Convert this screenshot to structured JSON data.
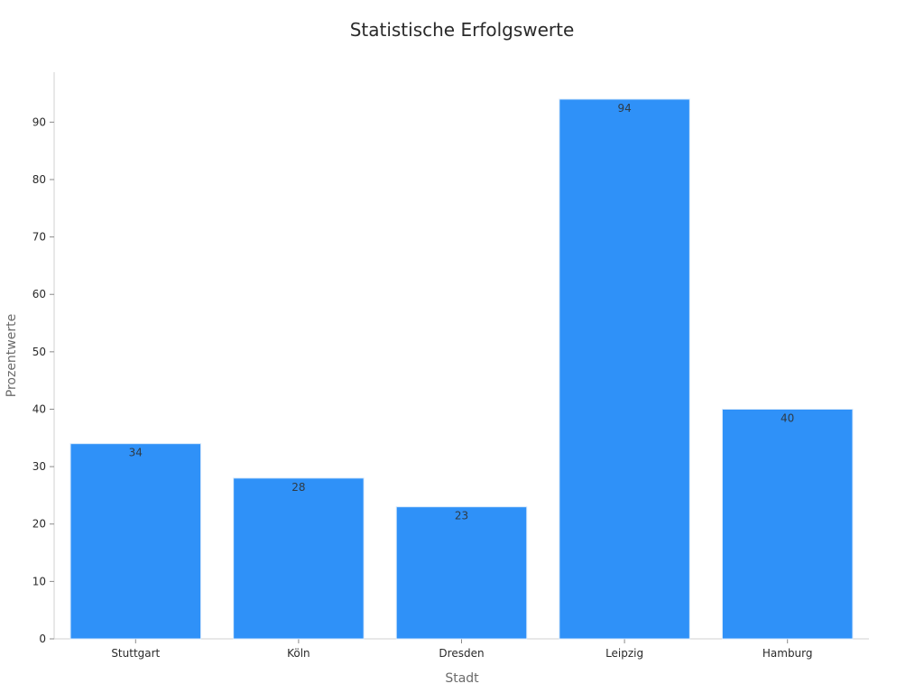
{
  "chart_data": {
    "type": "bar",
    "title": "Statistische Erfolgswerte",
    "xlabel": "Stadt",
    "ylabel": "Prozentwerte",
    "categories": [
      "Stuttgart",
      "Köln",
      "Dresden",
      "Leipzig",
      "Hamburg"
    ],
    "values": [
      34,
      28,
      23,
      94,
      40
    ],
    "data_labels": [
      "34",
      "28",
      "23",
      "94",
      "40"
    ],
    "y_ticks": [
      0,
      10,
      20,
      30,
      40,
      50,
      60,
      70,
      80,
      90
    ],
    "ylim": [
      0,
      98.7
    ],
    "grid": false,
    "legend": "none",
    "bar_color": "#2f91f8"
  }
}
